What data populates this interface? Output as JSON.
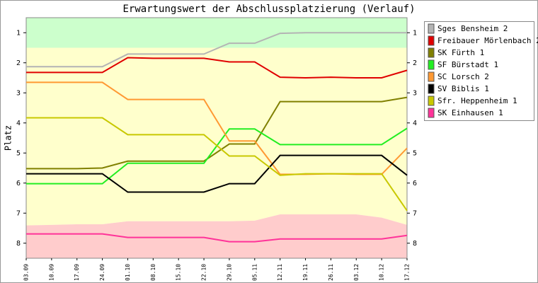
{
  "chart_data": {
    "type": "line",
    "title": "Erwartungswert der Abschlussplatzierung (Verlauf)",
    "y_label": "Platz",
    "categories": [
      "03.09",
      "10.09",
      "17.09",
      "24.09",
      "01.10",
      "08.10",
      "15.10",
      "22.10",
      "29.10",
      "05.11",
      "12.11",
      "19.11",
      "26.11",
      "03.12",
      "10.12",
      "17.12"
    ],
    "ylim": [
      8.5,
      0.5
    ],
    "yticks": [
      1,
      2,
      3,
      4,
      5,
      6,
      7,
      8
    ],
    "zones": [
      {
        "color": "#ccffcc",
        "from": 0.5,
        "to": 1.5
      },
      {
        "color": "#ffffcc",
        "from": 1.5,
        "to": [
          7.41,
          7.39,
          7.37,
          7.37,
          7.27,
          7.27,
          7.27,
          7.27,
          7.27,
          7.25,
          7.04,
          7.04,
          7.04,
          7.04,
          7.15,
          7.39
        ]
      },
      {
        "color": "#ffcccc",
        "from": [
          7.41,
          7.39,
          7.37,
          7.37,
          7.27,
          7.27,
          7.27,
          7.27,
          7.27,
          7.25,
          7.04,
          7.04,
          7.04,
          7.04,
          7.15,
          7.39
        ],
        "to": 8.5
      }
    ],
    "series": [
      {
        "name": "Sges Bensheim 2",
        "color": "#b4b4b4",
        "values": [
          2.13,
          2.13,
          2.13,
          2.13,
          1.71,
          1.71,
          1.71,
          1.71,
          1.35,
          1.35,
          1.02,
          1.0,
          1.0,
          1.0,
          1.0,
          1.0
        ]
      },
      {
        "name": "Freibauer Mörlenbach 2",
        "color": "#e00000",
        "values": [
          2.32,
          2.32,
          2.32,
          2.32,
          1.83,
          1.85,
          1.85,
          1.85,
          1.97,
          1.97,
          2.48,
          2.5,
          2.48,
          2.5,
          2.5,
          2.25
        ]
      },
      {
        "name": "SK Fürth 1",
        "color": "#808000",
        "values": [
          5.52,
          5.52,
          5.52,
          5.5,
          5.27,
          5.27,
          5.27,
          5.27,
          4.7,
          4.7,
          3.29,
          3.29,
          3.29,
          3.29,
          3.29,
          3.15
        ]
      },
      {
        "name": "SF Bürstadt 1",
        "color": "#22ee22",
        "values": [
          6.02,
          6.02,
          6.02,
          6.02,
          5.34,
          5.34,
          5.34,
          5.34,
          4.2,
          4.2,
          4.72,
          4.72,
          4.72,
          4.72,
          4.72,
          4.18
        ]
      },
      {
        "name": "SC Lorsch 2",
        "color": "#ff9933",
        "values": [
          2.65,
          2.65,
          2.65,
          2.65,
          3.22,
          3.22,
          3.22,
          3.22,
          4.6,
          4.6,
          5.71,
          5.71,
          5.69,
          5.71,
          5.71,
          4.84
        ]
      },
      {
        "name": "SV Biblis 1",
        "color": "#000000",
        "values": [
          5.69,
          5.69,
          5.69,
          5.69,
          6.3,
          6.3,
          6.3,
          6.3,
          6.02,
          6.02,
          5.08,
          5.08,
          5.08,
          5.08,
          5.08,
          5.74
        ]
      },
      {
        "name": "Sfr. Heppenheim 1",
        "color": "#c8c800",
        "values": [
          3.83,
          3.83,
          3.83,
          3.83,
          4.39,
          4.39,
          4.39,
          4.39,
          5.1,
          5.1,
          5.74,
          5.69,
          5.69,
          5.69,
          5.69,
          6.92
        ]
      },
      {
        "name": "SK Einhausen 1",
        "color": "#ff3399",
        "values": [
          7.69,
          7.69,
          7.69,
          7.69,
          7.81,
          7.81,
          7.81,
          7.81,
          7.95,
          7.95,
          7.86,
          7.86,
          7.86,
          7.86,
          7.86,
          7.74
        ]
      }
    ]
  }
}
